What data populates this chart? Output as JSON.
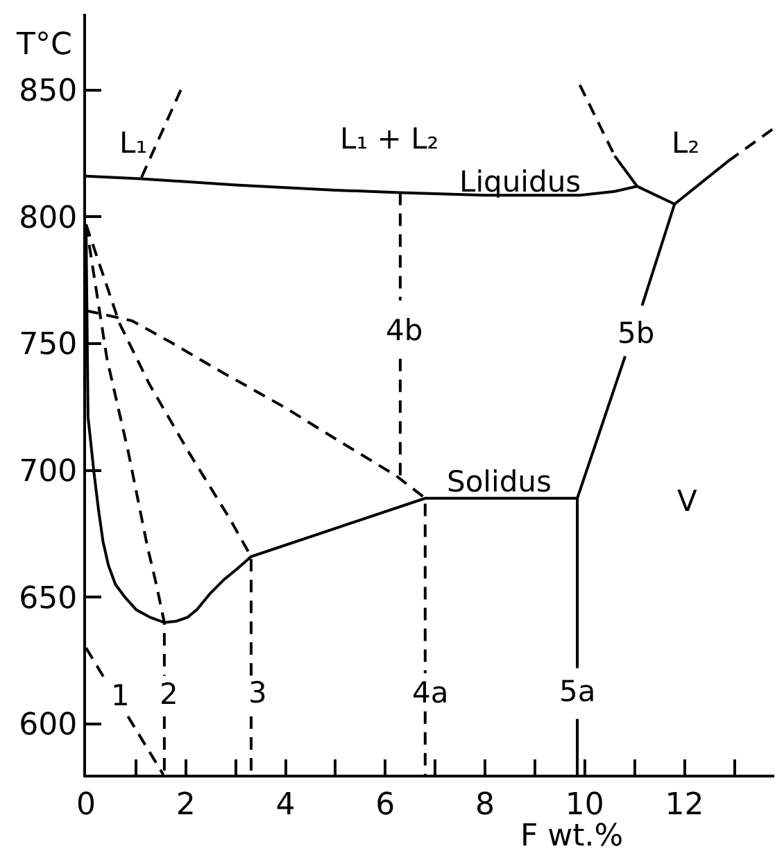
{
  "chart_data": {
    "type": "line",
    "xlabel": "F wt.%",
    "ylabel": "T°C",
    "color": "#000000",
    "line_style": "solid",
    "marker": "none",
    "xlim": [
      0,
      13.8
    ],
    "ylim": [
      580,
      880
    ],
    "xticks": [
      0,
      {
        "value": 1,
        "label": null
      },
      2,
      {
        "value": 3,
        "label": null
      },
      4,
      {
        "value": 5,
        "label": null
      },
      6,
      {
        "value": 7,
        "label": null
      },
      8,
      {
        "value": 9,
        "label": null
      },
      10,
      {
        "value": 11,
        "label": null
      },
      12,
      {
        "value": 13,
        "label": null
      }
    ],
    "yticks": [
      600,
      650,
      700,
      750,
      800,
      850
    ],
    "series": [
      {
        "x": [
          0,
          1.1,
          3,
          5,
          6.3,
          8,
          9.9,
          10.6,
          11.05,
          11.8
        ],
        "values": [
          816,
          815,
          812.5,
          810.5,
          809.5,
          808.5,
          808.5,
          810,
          812,
          805
        ]
      },
      {
        "x": [
          1.9,
          1.1
        ],
        "values": [
          850,
          815
        ],
        "line_style": "dashed"
      },
      {
        "x": [
          9.9,
          10.6
        ],
        "values": [
          852,
          824
        ],
        "line_style": "dashed"
      },
      {
        "x": [
          10.6,
          11.05
        ],
        "values": [
          824,
          812
        ]
      },
      {
        "x": [
          11.8,
          12.88
        ],
        "values": [
          805,
          822
        ]
      },
      {
        "x": [
          12.88,
          13.8
        ],
        "values": [
          822,
          835
        ],
        "line_style": "dashed"
      },
      {
        "x": [
          11.8,
          11.15
        ],
        "values": [
          805,
          765
        ]
      },
      {
        "x": [
          10.81,
          9.85,
          9.85
        ],
        "values": [
          745,
          689,
          622
        ]
      },
      {
        "x": [
          9.85,
          9.85
        ],
        "values": [
          602,
          580
        ]
      },
      {
        "x": [
          9.85,
          6.8,
          3.31,
          3.05,
          2.77,
          2.49,
          2.22,
          2.03,
          1.8,
          1.57,
          1.29,
          1.01,
          0.78,
          0.59,
          0.45,
          0.34,
          0.25,
          0.16,
          0.09,
          0.04,
          0.02,
          0
        ],
        "values": [
          689,
          689,
          666,
          661.5,
          657,
          651.5,
          645,
          642,
          640.5,
          640,
          642,
          645,
          650,
          655,
          662.5,
          672,
          684.5,
          699,
          712,
          721,
          760,
          797
        ]
      },
      {
        "x": [
          0,
          0.92,
          1.7,
          2.7,
          3.97,
          5.12,
          6.21,
          6.8,
          6.8
        ],
        "values": [
          763,
          759,
          750.5,
          739,
          725,
          711,
          698,
          689,
          620
        ],
        "line_style": "dashed"
      },
      {
        "x": [
          6.8,
          6.8
        ],
        "values": [
          605,
          580
        ],
        "line_style": "dashed"
      },
      {
        "x": [
          6.3,
          6.3
        ],
        "values": [
          809.5,
          767
        ],
        "line_style": "dashed"
      },
      {
        "x": [
          6.3,
          6.3
        ],
        "values": [
          744,
          697
        ],
        "line_style": "dashed"
      },
      {
        "x": [
          0,
          0.42,
          0.85,
          1.23,
          1.41,
          1.57,
          1.57
        ],
        "values": [
          797,
          744,
          707,
          670,
          655,
          640,
          619
        ],
        "line_style": "dashed"
      },
      {
        "x": [
          1.57,
          1.57
        ],
        "values": [
          603,
          580
        ],
        "line_style": "dashed"
      },
      {
        "x": [
          0,
          0.67,
          1.27,
          2.08,
          2.88,
          3.31,
          3.31
        ],
        "values": [
          797,
          758,
          734,
          706.5,
          681,
          666,
          619
        ],
        "line_style": "dashed"
      },
      {
        "x": [
          3.31,
          3.31
        ],
        "values": [
          603,
          580
        ],
        "line_style": "dashed"
      },
      {
        "x": [
          0,
          0.4
        ],
        "values": [
          630,
          617
        ],
        "line_style": "dashed"
      },
      {
        "x": [
          0.84,
          1.55
        ],
        "values": [
          603,
          580
        ],
        "line_style": "dashed"
      }
    ],
    "annotations": [
      "L₁",
      "L₁ + L₂",
      "L₂",
      "Liquidus",
      "Solidus",
      "V",
      "1",
      "2",
      "3",
      "4a",
      "5a",
      "4b",
      "5b"
    ]
  }
}
